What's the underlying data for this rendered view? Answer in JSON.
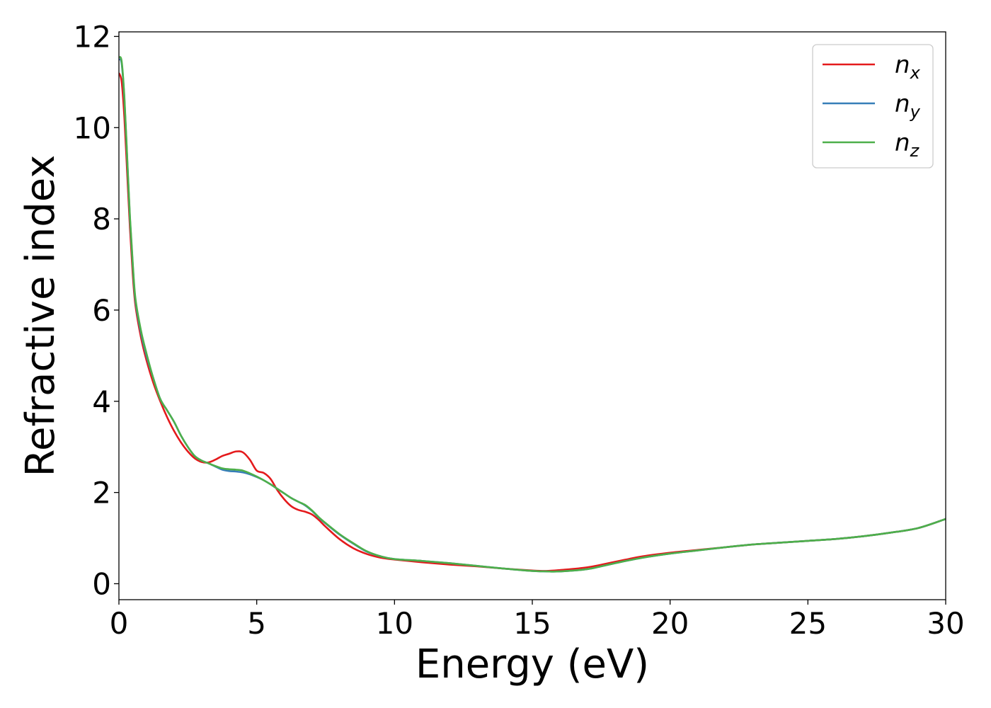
{
  "chart_data": {
    "type": "line",
    "title": "",
    "xlabel": "Energy (eV)",
    "ylabel": "Refractive index",
    "xlim": [
      0,
      30
    ],
    "ylim": [
      -0.35,
      12.1
    ],
    "xticks": [
      0,
      5,
      10,
      15,
      20,
      25,
      30
    ],
    "yticks": [
      0,
      2,
      4,
      6,
      8,
      10,
      12
    ],
    "grid": false,
    "legend_position": "top-right",
    "series": [
      {
        "name": "n",
        "subscript": "x",
        "color": "#e41a1c",
        "x": [
          0,
          0.1,
          0.2,
          0.3,
          0.4,
          0.5,
          0.6,
          0.8,
          1.0,
          1.25,
          1.5,
          1.75,
          2.0,
          2.25,
          2.5,
          2.75,
          3.0,
          3.25,
          3.5,
          3.75,
          4.0,
          4.25,
          4.5,
          4.75,
          5.0,
          5.25,
          5.5,
          5.75,
          6.0,
          6.25,
          6.5,
          6.75,
          7.0,
          7.25,
          7.5,
          8.0,
          8.5,
          9.0,
          9.5,
          10,
          11,
          12,
          13,
          14,
          15,
          15.5,
          16,
          17,
          18,
          19,
          20,
          21,
          22,
          23,
          24,
          25,
          26,
          27,
          28,
          29,
          30
        ],
        "y": [
          11.2,
          11.0,
          10.2,
          9.0,
          7.8,
          6.8,
          6.1,
          5.4,
          4.9,
          4.4,
          4.0,
          3.65,
          3.35,
          3.1,
          2.9,
          2.75,
          2.67,
          2.66,
          2.72,
          2.8,
          2.85,
          2.9,
          2.88,
          2.72,
          2.48,
          2.43,
          2.3,
          2.05,
          1.85,
          1.7,
          1.62,
          1.58,
          1.52,
          1.4,
          1.25,
          0.98,
          0.78,
          0.65,
          0.57,
          0.53,
          0.47,
          0.42,
          0.38,
          0.33,
          0.29,
          0.28,
          0.3,
          0.36,
          0.48,
          0.6,
          0.68,
          0.74,
          0.8,
          0.86,
          0.9,
          0.94,
          0.98,
          1.04,
          1.12,
          1.22,
          1.42
        ]
      },
      {
        "name": "n",
        "subscript": "y",
        "color": "#377eb8",
        "x": [
          0,
          0.1,
          0.2,
          0.3,
          0.4,
          0.5,
          0.6,
          0.8,
          1.0,
          1.25,
          1.5,
          1.75,
          2.0,
          2.25,
          2.5,
          2.75,
          3.0,
          3.25,
          3.5,
          3.75,
          4.0,
          4.25,
          4.5,
          4.75,
          5.0,
          5.25,
          5.5,
          5.75,
          6.0,
          6.25,
          6.5,
          6.75,
          7.0,
          7.25,
          7.5,
          8.0,
          8.5,
          9.0,
          9.5,
          10,
          11,
          12,
          13,
          14,
          15,
          15.5,
          16,
          17,
          18,
          19,
          20,
          21,
          22,
          23,
          24,
          25,
          26,
          27,
          28,
          29,
          30
        ],
        "y": [
          11.5,
          11.4,
          10.6,
          9.3,
          8.0,
          7.0,
          6.2,
          5.5,
          5.0,
          4.5,
          4.05,
          3.8,
          3.55,
          3.25,
          3.0,
          2.8,
          2.7,
          2.64,
          2.57,
          2.5,
          2.47,
          2.46,
          2.44,
          2.4,
          2.34,
          2.27,
          2.18,
          2.08,
          1.98,
          1.88,
          1.8,
          1.72,
          1.6,
          1.45,
          1.32,
          1.08,
          0.88,
          0.7,
          0.6,
          0.54,
          0.5,
          0.45,
          0.39,
          0.33,
          0.28,
          0.27,
          0.27,
          0.32,
          0.45,
          0.57,
          0.66,
          0.73,
          0.8,
          0.86,
          0.9,
          0.94,
          0.98,
          1.04,
          1.12,
          1.22,
          1.42
        ]
      },
      {
        "name": "n",
        "subscript": "z",
        "color": "#4daf4a",
        "x": [
          0,
          0.1,
          0.2,
          0.3,
          0.4,
          0.5,
          0.6,
          0.8,
          1.0,
          1.25,
          1.5,
          1.75,
          2.0,
          2.25,
          2.5,
          2.75,
          3.0,
          3.25,
          3.5,
          3.75,
          4.0,
          4.25,
          4.5,
          4.75,
          5.0,
          5.25,
          5.5,
          5.75,
          6.0,
          6.25,
          6.5,
          6.75,
          7.0,
          7.25,
          7.5,
          8.0,
          8.5,
          9.0,
          9.5,
          10,
          11,
          12,
          13,
          14,
          15,
          15.5,
          16,
          17,
          18,
          19,
          20,
          21,
          22,
          23,
          24,
          25,
          26,
          27,
          28,
          29,
          30
        ],
        "y": [
          11.55,
          11.45,
          10.65,
          9.35,
          8.05,
          7.05,
          6.25,
          5.55,
          5.05,
          4.5,
          4.05,
          3.8,
          3.55,
          3.25,
          3.0,
          2.8,
          2.7,
          2.64,
          2.58,
          2.53,
          2.51,
          2.5,
          2.48,
          2.42,
          2.35,
          2.27,
          2.18,
          2.08,
          1.98,
          1.88,
          1.8,
          1.73,
          1.61,
          1.46,
          1.33,
          1.09,
          0.89,
          0.71,
          0.6,
          0.54,
          0.5,
          0.45,
          0.39,
          0.33,
          0.28,
          0.27,
          0.27,
          0.32,
          0.45,
          0.57,
          0.66,
          0.73,
          0.8,
          0.86,
          0.9,
          0.94,
          0.98,
          1.04,
          1.12,
          1.22,
          1.42
        ]
      }
    ]
  }
}
